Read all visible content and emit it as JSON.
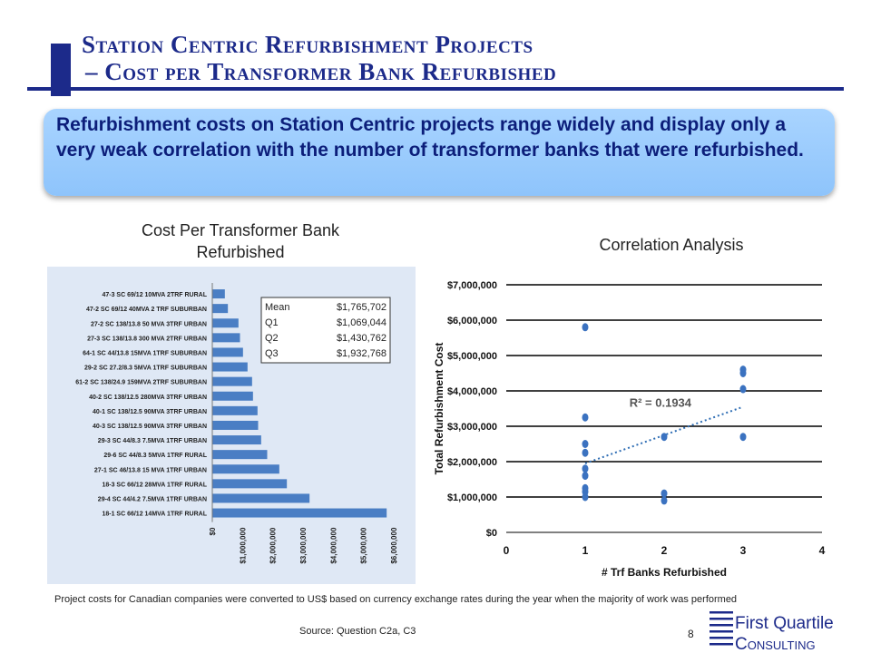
{
  "header": {
    "title_line1": "Station Centric Refurbishment Projects",
    "title_line2": "– Cost per Transformer Bank Refurbished"
  },
  "callout": {
    "text": "Refurbishment costs on Station Centric projects range widely and display only a very weak correlation with the number of transformer banks that were refurbished."
  },
  "chart_data": [
    {
      "type": "bar",
      "orientation": "horizontal",
      "title": "Cost Per Transformer Bank Refurbished",
      "categories": [
        "47-3 SC 69/12 10MVA 2TRF RURAL",
        "47-2 SC 69/12 40MVA 2 TRF SUBURBAN",
        "27-2 SC 138/13.8 50 MVA 3TRF URBAN",
        "27-3 SC 138/13.8 300 MVA 2TRF URBAN",
        "64-1 SC 44/13.8 15MVA 1TRF SUBURBAN",
        "29-2 SC 27.2/8.3 5MVA 1TRF SUBURBAN",
        "61-2 SC 138/24.9 159MVA 2TRF SUBURBAN",
        "40-2 SC 138/12.5 280MVA 3TRF URBAN",
        "40-1 SC 138/12.5 90MVA 3TRF URBAN",
        "40-3 SC 138/12.5 90MVA 3TRF URBAN",
        "29-3 SC 44/8.3 7.5MVA 1TRF URBAN",
        "29-6 SC 44/8.3 5MVA 1TRF RURAL",
        "27-1 SC 46/13.8 15 MVA 1TRF URBAN",
        "18-3 SC 66/12 28MVA 1TRF RURAL",
        "29-4 SC 44/4.2 7.5MVA 1TRF URBAN",
        "18-1 SC 66/12 14MVA 1TRF RURAL"
      ],
      "values": [
        400000,
        500000,
        850000,
        900000,
        1000000,
        1150000,
        1300000,
        1330000,
        1480000,
        1500000,
        1600000,
        1800000,
        2200000,
        2450000,
        3200000,
        5750000
      ],
      "xlim": [
        0,
        6000000
      ],
      "ticks": [
        "$0",
        "$1,000,000",
        "$2,000,000",
        "$3,000,000",
        "$4,000,000",
        "$5,000,000",
        "$6,000,000"
      ],
      "stats": [
        {
          "label": "Mean",
          "value": "$1,765,702"
        },
        {
          "label": "Q1",
          "value": "$1,069,044"
        },
        {
          "label": "Q2",
          "value": "$1,430,762"
        },
        {
          "label": "Q3",
          "value": "$1,932,768"
        }
      ],
      "bar_color": "#4a7ec4",
      "background": "#dfe8f5"
    },
    {
      "type": "scatter",
      "title": "Correlation Analysis",
      "xlabel": "# Trf Banks Refurbished",
      "ylabel": "Total Refurbishment Cost",
      "xlim": [
        0,
        4
      ],
      "ylim": [
        0,
        7000000
      ],
      "x_ticks": [
        "0",
        "1",
        "2",
        "3",
        "4"
      ],
      "y_ticks": [
        "$0",
        "$1,000,000",
        "$2,000,000",
        "$3,000,000",
        "$4,000,000",
        "$5,000,000",
        "$6,000,000",
        "$7,000,000"
      ],
      "points": [
        {
          "x": 1,
          "y": 5800000
        },
        {
          "x": 1,
          "y": 3250000
        },
        {
          "x": 1,
          "y": 2500000
        },
        {
          "x": 1,
          "y": 2250000
        },
        {
          "x": 1,
          "y": 1800000
        },
        {
          "x": 1,
          "y": 1600000
        },
        {
          "x": 1,
          "y": 1250000
        },
        {
          "x": 1,
          "y": 1150000
        },
        {
          "x": 1,
          "y": 1000000
        },
        {
          "x": 2,
          "y": 2700000
        },
        {
          "x": 2,
          "y": 1100000
        },
        {
          "x": 2,
          "y": 900000
        },
        {
          "x": 3,
          "y": 4600000
        },
        {
          "x": 3,
          "y": 4500000
        },
        {
          "x": 3,
          "y": 4050000
        },
        {
          "x": 3,
          "y": 2700000
        }
      ],
      "trendline": {
        "x": [
          1,
          3
        ],
        "y": [
          1950000,
          3550000
        ]
      },
      "annotation": "R² = 0.1934",
      "point_color": "#3b72c0",
      "grid": true
    }
  ],
  "chart_titles": {
    "bar_line1": "Cost Per Transformer Bank",
    "bar_line2": "Refurbished",
    "scatter": "Correlation Analysis"
  },
  "footnote": "Project costs for Canadian companies were converted to  US$ based on currency exchange rates during the year when the majority of work was performed",
  "source": "Source:  Question C2a, C3",
  "page_number": "8",
  "logo": {
    "line1": "First Quartile",
    "line2": "Consulting",
    "color": "#1c2a8a"
  }
}
